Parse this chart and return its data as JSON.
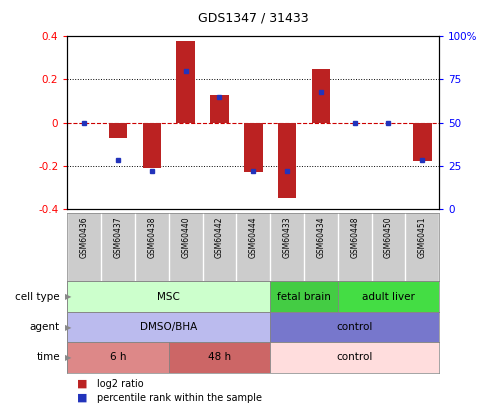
{
  "title": "GDS1347 / 31433",
  "samples": [
    "GSM60436",
    "GSM60437",
    "GSM60438",
    "GSM60440",
    "GSM60442",
    "GSM60444",
    "GSM60433",
    "GSM60434",
    "GSM60448",
    "GSM60450",
    "GSM60451"
  ],
  "log2_ratio": [
    0.0,
    -0.07,
    -0.21,
    0.38,
    0.13,
    -0.23,
    -0.35,
    0.25,
    0.0,
    0.0,
    -0.18
  ],
  "percentile": [
    50,
    28,
    22,
    80,
    65,
    22,
    22,
    68,
    50,
    50,
    28
  ],
  "ylim": [
    -0.4,
    0.4
  ],
  "y2lim": [
    0,
    100
  ],
  "yticks": [
    -0.4,
    -0.2,
    0.0,
    0.2,
    0.4
  ],
  "y2ticks": [
    0,
    25,
    50,
    75,
    100
  ],
  "bar_color": "#bb2222",
  "dot_color": "#2233bb",
  "hline_color": "#cc0000",
  "cell_type_groups": [
    {
      "label": "MSC",
      "start": 0,
      "end": 5,
      "color": "#ccffcc"
    },
    {
      "label": "fetal brain",
      "start": 6,
      "end": 7,
      "color": "#44cc44"
    },
    {
      "label": "adult liver",
      "start": 8,
      "end": 10,
      "color": "#44dd44"
    }
  ],
  "agent_groups": [
    {
      "label": "DMSO/BHA",
      "start": 0,
      "end": 5,
      "color": "#bbbbee"
    },
    {
      "label": "control",
      "start": 6,
      "end": 10,
      "color": "#7777cc"
    }
  ],
  "time_groups": [
    {
      "label": "6 h",
      "start": 0,
      "end": 2,
      "color": "#dd8888"
    },
    {
      "label": "48 h",
      "start": 3,
      "end": 5,
      "color": "#cc6666"
    },
    {
      "label": "control",
      "start": 6,
      "end": 10,
      "color": "#ffdddd"
    }
  ],
  "bg_color": "#ffffff",
  "bar_width": 0.55,
  "label_area_color": "#cccccc"
}
